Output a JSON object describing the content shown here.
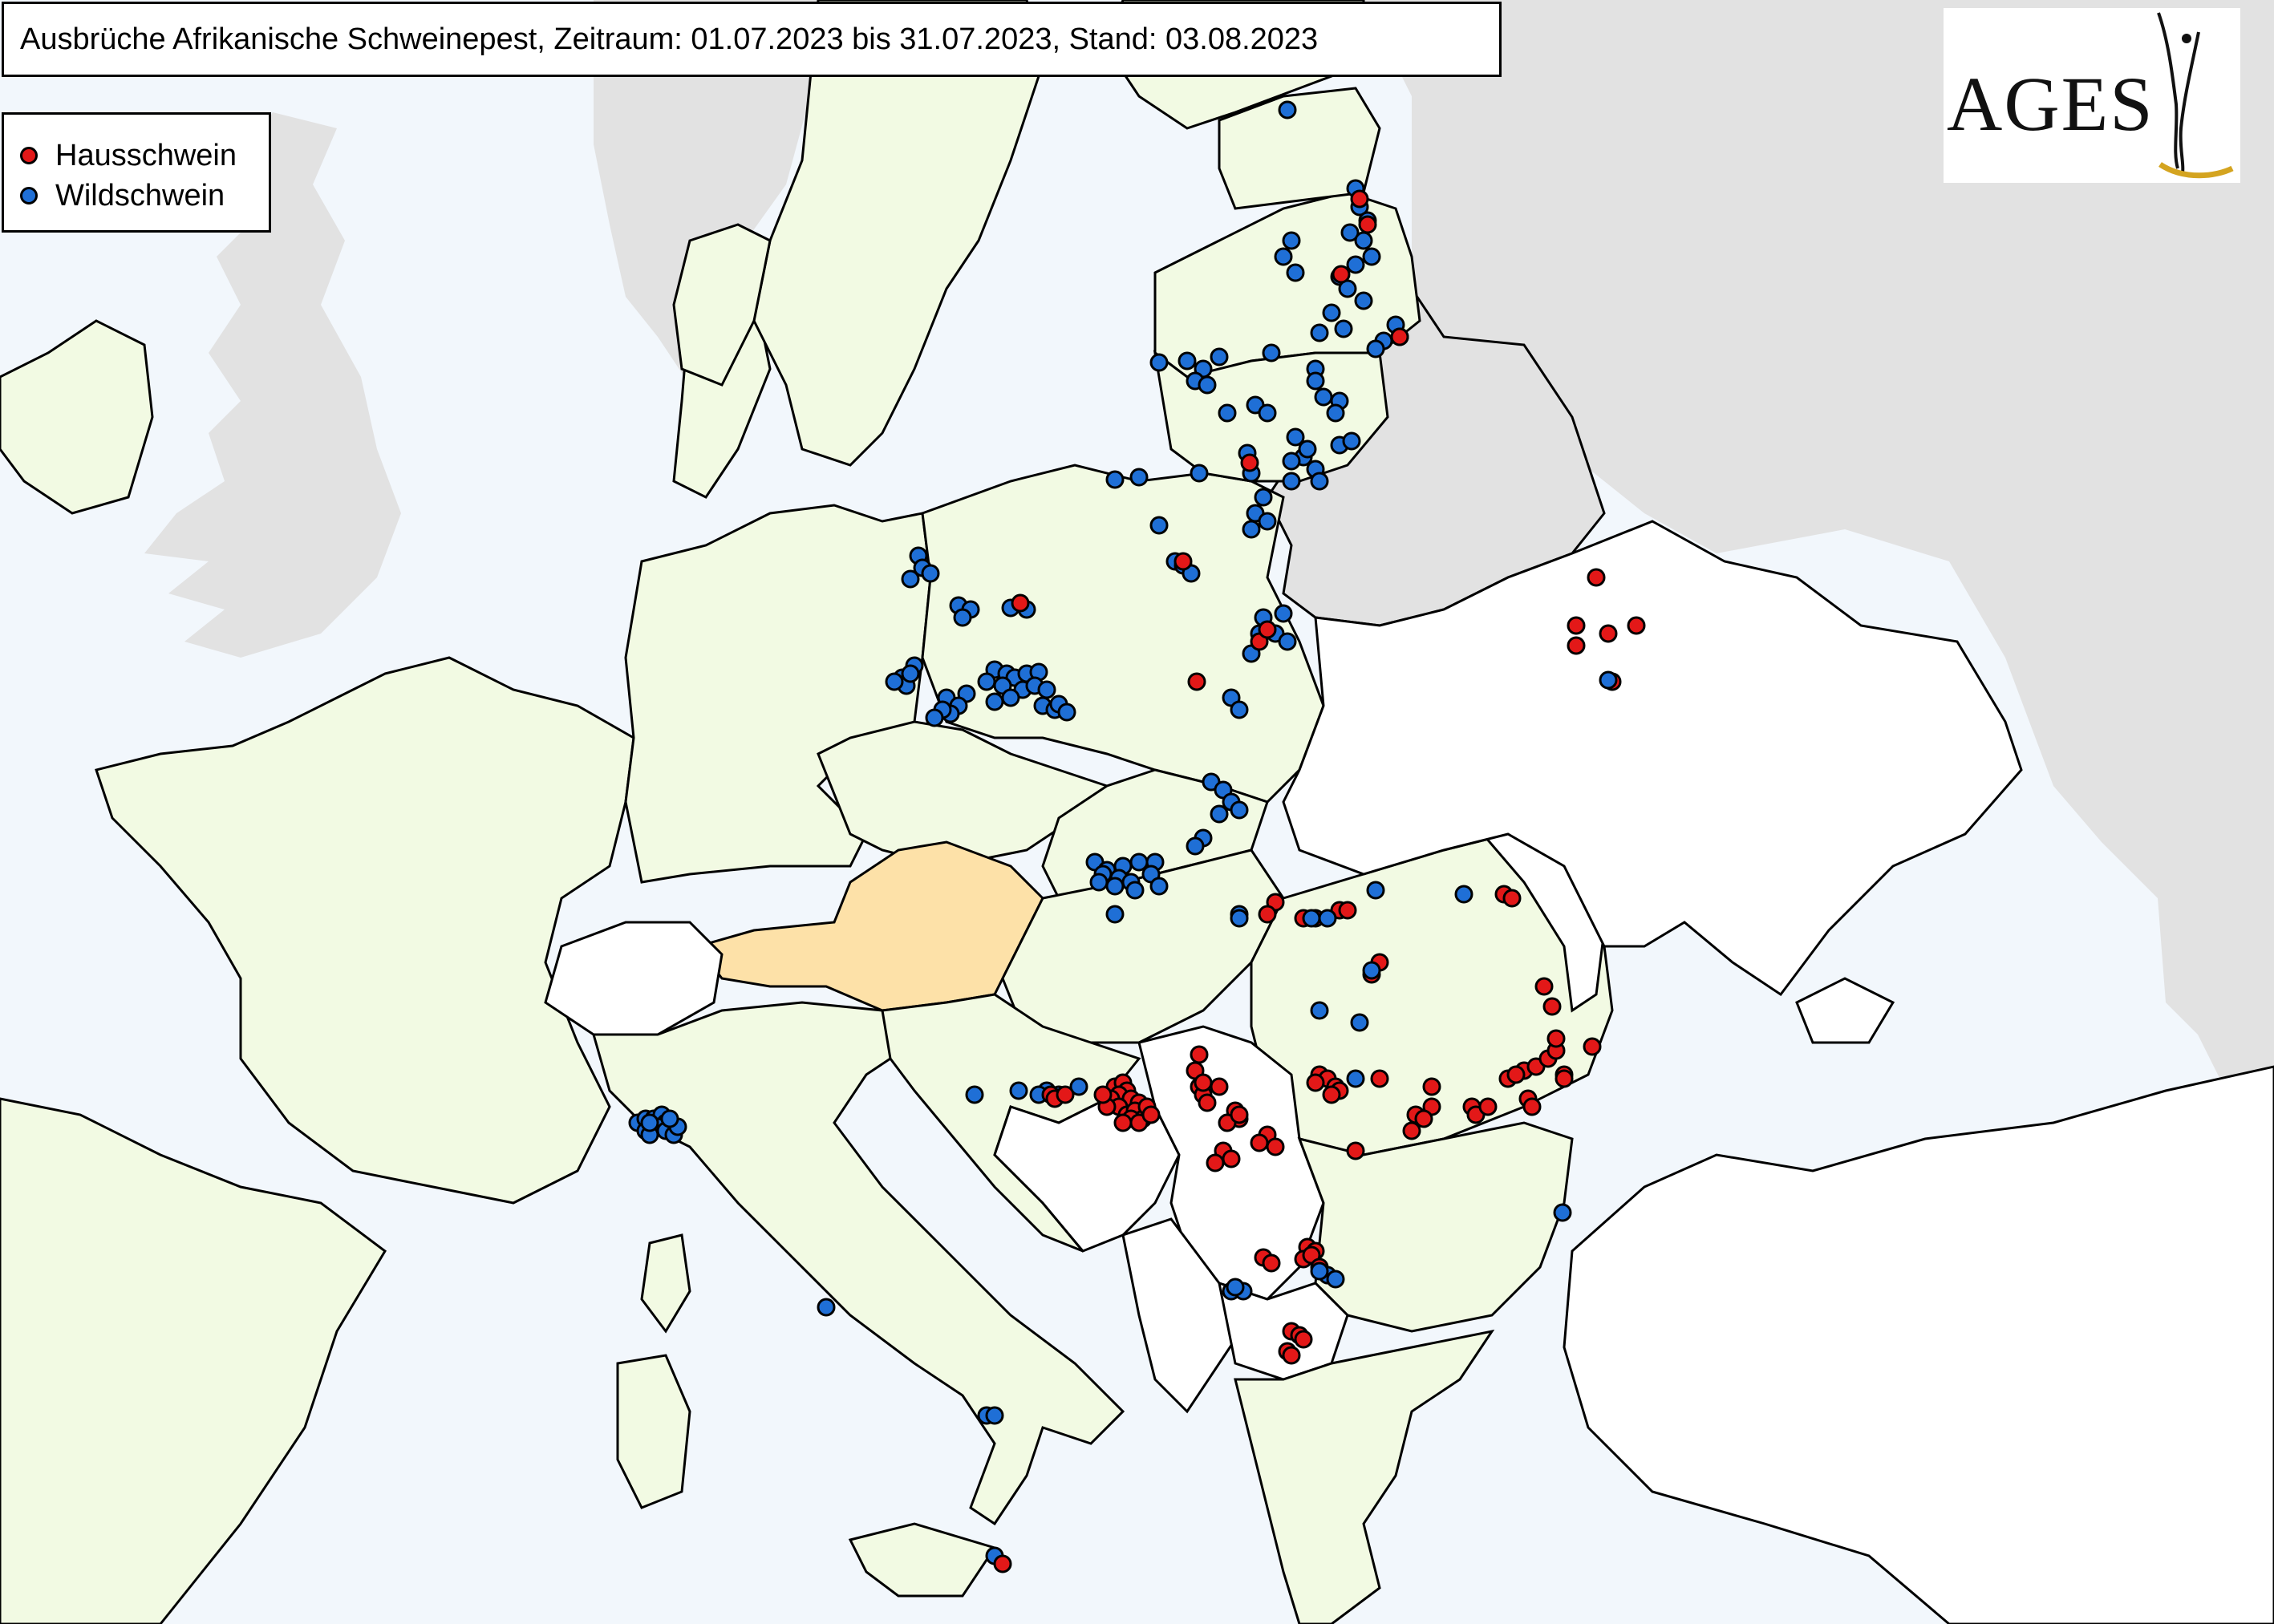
{
  "title": "Ausbrüche Afrikanische Schweinepest, Zeitraum: 01.07.2023 bis 31.07.2023, Stand: 03.08.2023",
  "legend": {
    "domestic_label": "Hausschwein",
    "wild_label": "Wildschwein"
  },
  "logo": {
    "text": "AGES"
  },
  "colors": {
    "sea": "#f2f7fc",
    "non_eu_land": "#e2e2e2",
    "affected_land": "#f2fae3",
    "unaffected_land": "#ffffff",
    "austria": "#fde1a8",
    "domestic": "#e31818",
    "wild": "#1f6fd6",
    "logo_accent": "#d4a420"
  },
  "map": {
    "highlight_country": "austria-region",
    "countries": [
      "germany-region",
      "poland-region",
      "latvia-region",
      "lithuania-region",
      "czechia-region",
      "slovakia-region",
      "hungary-region",
      "romania-region",
      "italy-region",
      "croatia-region",
      "serbia-region",
      "bosnia-region",
      "bulgaria-region",
      "ukraine-region",
      "france-region",
      "greece-region",
      "turkey-region",
      "belarus-region",
      "russia-region",
      "uk-region",
      "switzerland-region",
      "sweden-region",
      "norway-region",
      "finland-region",
      "estonia-region",
      "denmark-region"
    ]
  }
}
